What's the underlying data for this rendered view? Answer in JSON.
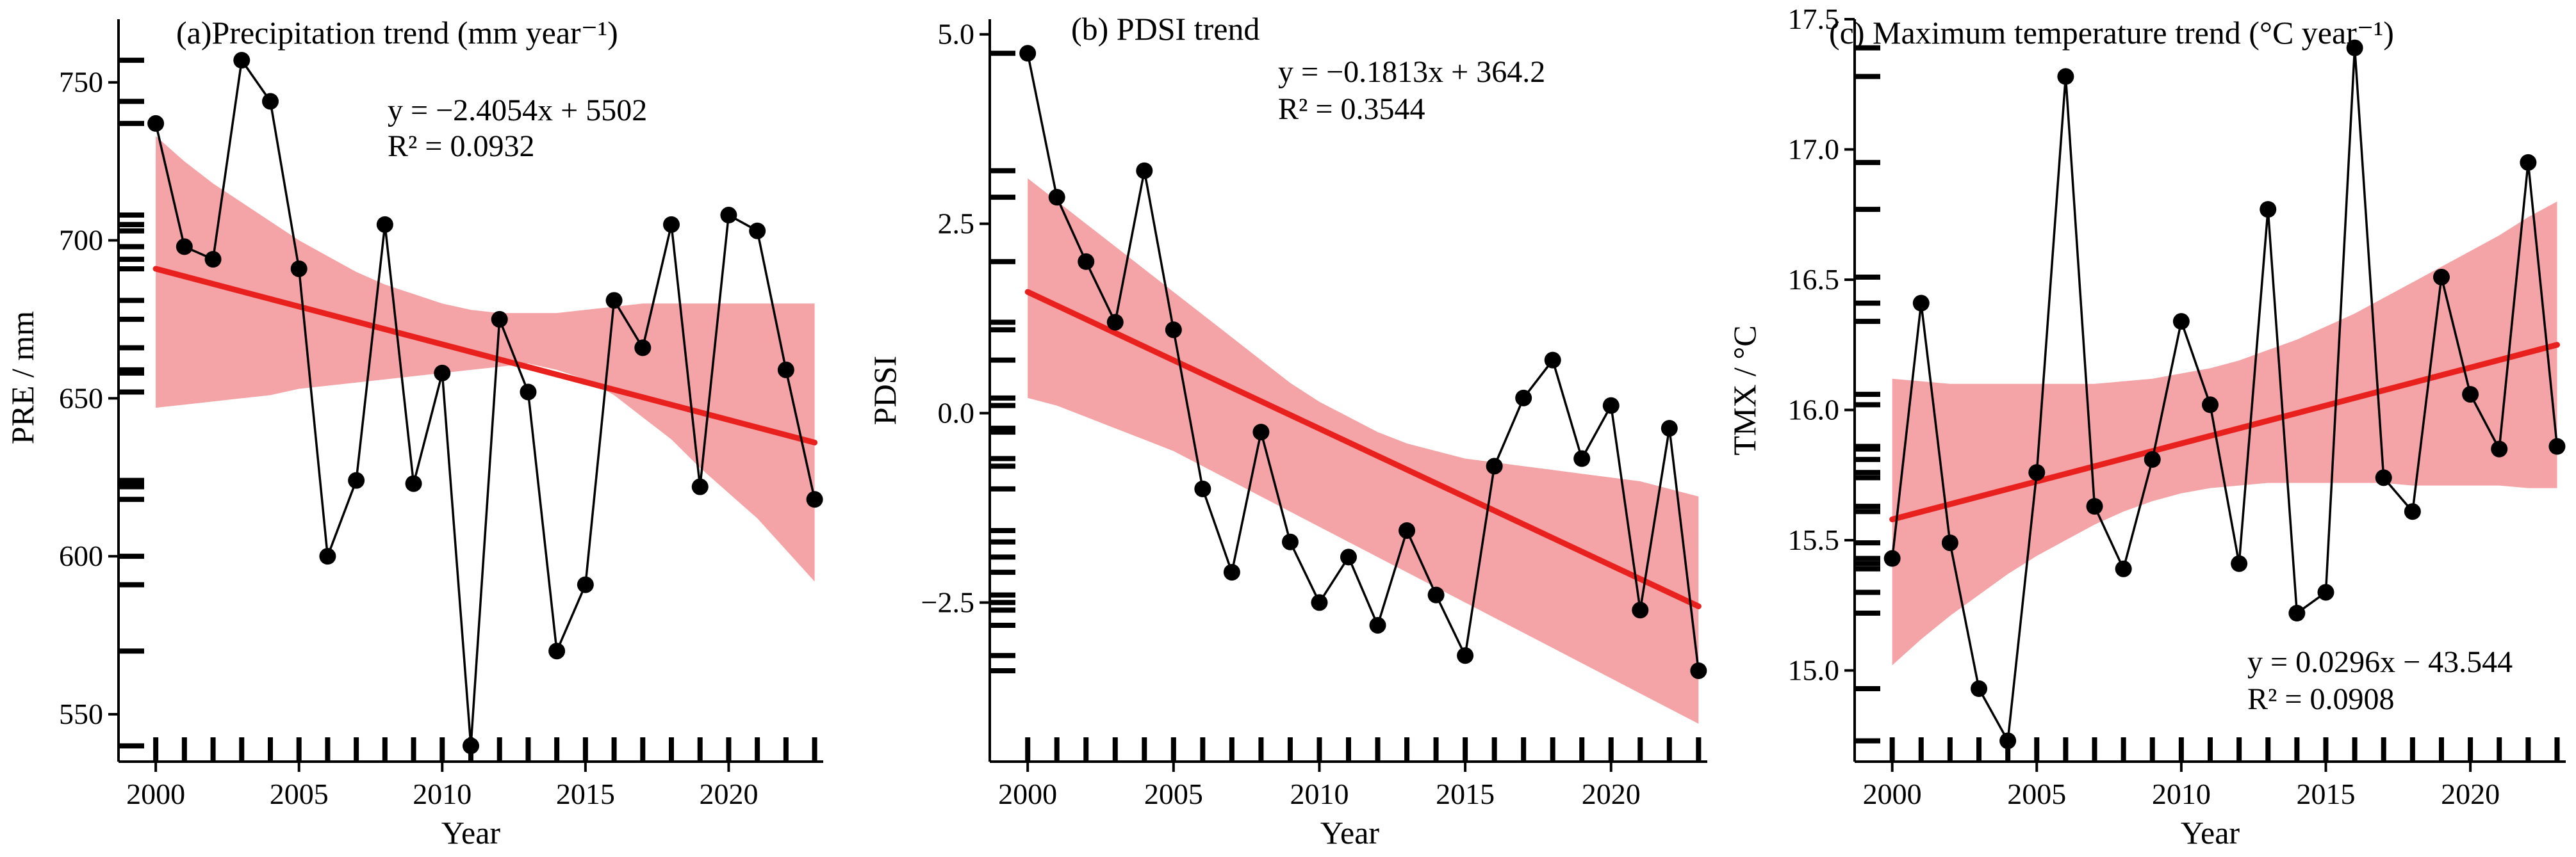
{
  "figure": {
    "xlabel": "Year",
    "colors": {
      "ci_band": "#f4a3a6",
      "trend_line": "#e8201e",
      "observed_line": "#000000",
      "points": "#000000",
      "axes": "#000000"
    }
  },
  "chart_data": [
    {
      "type": "line",
      "title": "(a)Precipitation trend (mm year⁻¹)",
      "xlabel": "Year",
      "ylabel": "PRE / mm",
      "x": [
        2000,
        2001,
        2002,
        2003,
        2004,
        2005,
        2006,
        2007,
        2008,
        2009,
        2010,
        2011,
        2012,
        2013,
        2014,
        2015,
        2016,
        2017,
        2018,
        2019,
        2020,
        2021,
        2022,
        2023
      ],
      "series": [
        {
          "name": "observed",
          "values": [
            737,
            698,
            694,
            757,
            744,
            691,
            600,
            624,
            705,
            623,
            658,
            540,
            675,
            652,
            570,
            591,
            681,
            666,
            705,
            622,
            708,
            703,
            659,
            618
          ]
        }
      ],
      "trend": {
        "slope": -2.4054,
        "intercept": 5502,
        "start": 691,
        "end": 636,
        "equation": "y = −2.4054x + 5502",
        "r2": "R² = 0.0932"
      },
      "ci_upper": [
        733,
        725,
        718,
        712,
        706,
        700,
        695,
        690,
        686,
        683,
        680,
        678,
        677,
        677,
        677,
        678,
        679,
        680,
        680,
        680,
        680,
        680,
        680,
        680
      ],
      "ci_lower": [
        647,
        648,
        649,
        650,
        651,
        653,
        654,
        655,
        656,
        657,
        658,
        659,
        660,
        661,
        659,
        656,
        651,
        644,
        637,
        628,
        620,
        612,
        602,
        592
      ],
      "ylim": [
        535,
        770
      ],
      "xticks": [
        2000,
        2005,
        2010,
        2015,
        2020
      ],
      "xtick_labels": [
        "2000",
        "2005",
        "2010",
        "2015",
        "2020"
      ],
      "yticks": [
        550,
        600,
        650,
        700,
        750
      ],
      "ytick_labels": [
        "550",
        "600",
        "650",
        "700",
        "750"
      ]
    },
    {
      "type": "line",
      "title": "(b) PDSI trend",
      "xlabel": "Year",
      "ylabel": "PDSI",
      "x": [
        2000,
        2001,
        2002,
        2003,
        2004,
        2005,
        2006,
        2007,
        2008,
        2009,
        2010,
        2011,
        2012,
        2013,
        2014,
        2015,
        2016,
        2017,
        2018,
        2019,
        2020,
        2021,
        2022,
        2023
      ],
      "series": [
        {
          "name": "observed",
          "values": [
            4.75,
            2.85,
            2.0,
            1.2,
            3.2,
            1.1,
            -1.0,
            -2.1,
            -0.25,
            -1.7,
            -2.5,
            -1.9,
            -2.8,
            -1.55,
            -2.4,
            -3.2,
            -0.7,
            0.2,
            0.7,
            -0.6,
            0.1,
            -2.6,
            -0.2,
            -3.4
          ]
        }
      ],
      "trend": {
        "slope": -0.1813,
        "intercept": 364.2,
        "start": 1.6,
        "end": -2.55,
        "equation": "y = −0.1813x + 364.2",
        "r2": "R² = 0.3544"
      },
      "ci_upper": [
        3.1,
        2.8,
        2.5,
        2.2,
        1.9,
        1.6,
        1.3,
        1.0,
        0.7,
        0.4,
        0.15,
        -0.05,
        -0.25,
        -0.4,
        -0.5,
        -0.6,
        -0.65,
        -0.7,
        -0.75,
        -0.8,
        -0.85,
        -0.9,
        -1.0,
        -1.1
      ],
      "ci_lower": [
        0.2,
        0.1,
        -0.05,
        -0.2,
        -0.35,
        -0.5,
        -0.7,
        -0.9,
        -1.1,
        -1.3,
        -1.5,
        -1.7,
        -1.9,
        -2.1,
        -2.3,
        -2.5,
        -2.7,
        -2.9,
        -3.1,
        -3.3,
        -3.5,
        -3.7,
        -3.9,
        -4.1
      ],
      "ylim": [
        -4.6,
        5.2
      ],
      "xticks": [
        2000,
        2005,
        2010,
        2015,
        2020
      ],
      "xtick_labels": [
        "2000",
        "2005",
        "2010",
        "2015",
        "2020"
      ],
      "yticks": [
        -2.5,
        0,
        2.5,
        5
      ],
      "ytick_labels": [
        "−2.5",
        "0.0",
        "2.5",
        "5.0"
      ]
    },
    {
      "type": "line",
      "title": "(c) Maximum temperature trend (°C year⁻¹)",
      "xlabel": "Year",
      "ylabel": "TMX / °C",
      "x": [
        2000,
        2001,
        2002,
        2003,
        2004,
        2005,
        2006,
        2007,
        2008,
        2009,
        2010,
        2011,
        2012,
        2013,
        2014,
        2015,
        2016,
        2017,
        2018,
        2019,
        2020,
        2021,
        2022,
        2023
      ],
      "series": [
        {
          "name": "observed",
          "values": [
            15.43,
            16.41,
            15.49,
            14.93,
            14.73,
            15.76,
            17.28,
            15.63,
            15.39,
            15.81,
            16.34,
            16.02,
            15.41,
            16.77,
            15.22,
            15.3,
            17.39,
            15.74,
            15.61,
            16.51,
            16.06,
            15.85,
            16.95,
            15.86
          ]
        }
      ],
      "trend": {
        "slope": 0.0296,
        "intercept": -43.544,
        "start": 15.58,
        "end": 16.25,
        "equation": "y = 0.0296x − 43.544",
        "r2": "R² = 0.0908"
      },
      "ci_upper": [
        16.12,
        16.11,
        16.1,
        16.1,
        16.1,
        16.1,
        16.1,
        16.1,
        16.11,
        16.12,
        16.14,
        16.16,
        16.19,
        16.23,
        16.27,
        16.32,
        16.37,
        16.43,
        16.49,
        16.55,
        16.61,
        16.67,
        16.74,
        16.8
      ],
      "ci_lower": [
        15.02,
        15.12,
        15.21,
        15.29,
        15.37,
        15.44,
        15.5,
        15.56,
        15.61,
        15.65,
        15.68,
        15.7,
        15.71,
        15.72,
        15.72,
        15.72,
        15.72,
        15.72,
        15.71,
        15.71,
        15.71,
        15.71,
        15.7,
        15.7
      ],
      "ylim": [
        14.65,
        17.5
      ],
      "xticks": [
        2000,
        2005,
        2010,
        2015,
        2020
      ],
      "xtick_labels": [
        "2000",
        "2005",
        "2010",
        "2015",
        "2020"
      ],
      "yticks": [
        15,
        15.5,
        16,
        16.5,
        17,
        17.5
      ],
      "ytick_labels": [
        "15.0",
        "15.5",
        "16.0",
        "16.5",
        "17.0",
        "17.5"
      ]
    }
  ]
}
